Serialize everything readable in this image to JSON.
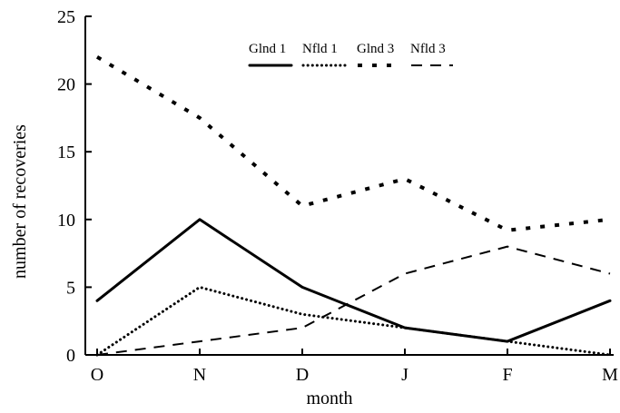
{
  "chart_data": {
    "type": "line",
    "xlabel": "month",
    "ylabel": "number of recoveries",
    "categories": [
      "O",
      "N",
      "D",
      "J",
      "F",
      "M"
    ],
    "yticks": [
      0,
      5,
      10,
      15,
      20,
      25
    ],
    "ylim": [
      0,
      25
    ],
    "grid": false,
    "legend_position": "top-center",
    "series": [
      {
        "name": "Glnd 1",
        "style": "solid",
        "color": "#000000",
        "values": [
          4,
          10,
          5,
          2,
          1,
          4
        ]
      },
      {
        "name": "Nfld 1",
        "style": "dotted",
        "color": "#000000",
        "values": [
          0,
          5,
          3,
          2,
          1,
          0
        ]
      },
      {
        "name": "Glnd 3",
        "style": "dashed-short",
        "color": "#000000",
        "values": [
          22,
          17.5,
          11,
          13,
          9.2,
          10
        ]
      },
      {
        "name": "Nfld 3",
        "style": "dashed-long",
        "color": "#000000",
        "values": [
          0,
          1,
          2,
          6,
          8,
          6
        ]
      }
    ]
  }
}
